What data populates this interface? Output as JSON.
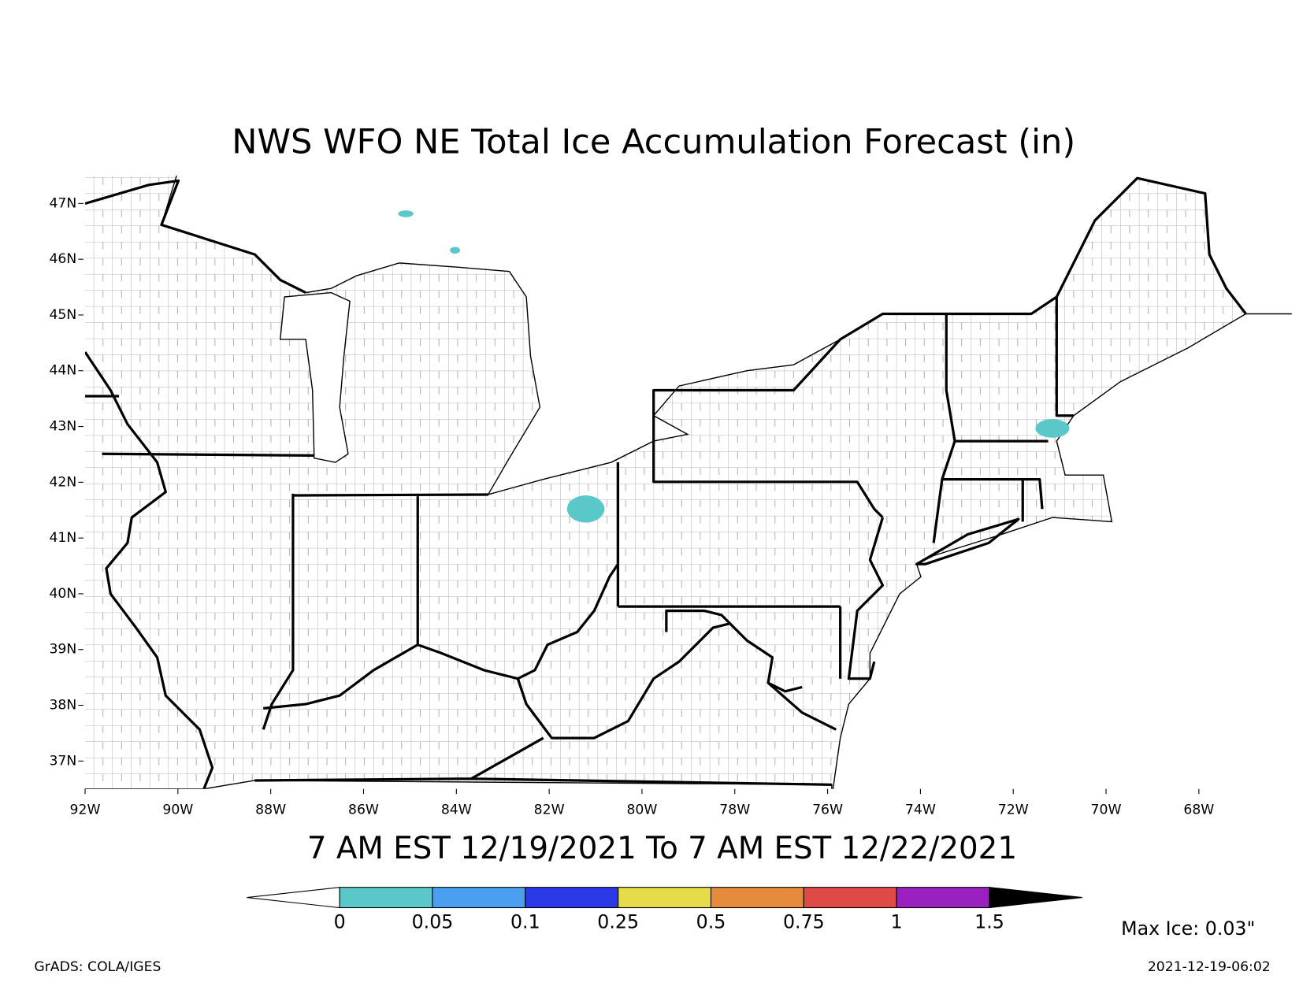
{
  "chart_data": {
    "type": "map",
    "title": "NWS WFO NE Total Ice Accumulation Forecast (in)",
    "subtitle": "7 AM EST 12/19/2021 To 7 AM EST 12/22/2021",
    "xlim": [
      -92,
      -66
    ],
    "ylim": [
      36.5,
      47.5
    ],
    "xticks": [
      {
        "value": -92,
        "label": "92W"
      },
      {
        "value": -90,
        "label": "90W"
      },
      {
        "value": -88,
        "label": "88W"
      },
      {
        "value": -86,
        "label": "86W"
      },
      {
        "value": -84,
        "label": "84W"
      },
      {
        "value": -82,
        "label": "82W"
      },
      {
        "value": -80,
        "label": "80W"
      },
      {
        "value": -78,
        "label": "78W"
      },
      {
        "value": -76,
        "label": "76W"
      },
      {
        "value": -74,
        "label": "74W"
      },
      {
        "value": -72,
        "label": "72W"
      },
      {
        "value": -70,
        "label": "70W"
      },
      {
        "value": -68,
        "label": "68W"
      }
    ],
    "yticks": [
      {
        "value": 37,
        "label": "37N"
      },
      {
        "value": 38,
        "label": "38N"
      },
      {
        "value": 39,
        "label": "39N"
      },
      {
        "value": 40,
        "label": "40N"
      },
      {
        "value": 41,
        "label": "41N"
      },
      {
        "value": 42,
        "label": "42N"
      },
      {
        "value": 43,
        "label": "43N"
      },
      {
        "value": 44,
        "label": "44N"
      },
      {
        "value": 45,
        "label": "45N"
      },
      {
        "value": 46,
        "label": "46N"
      },
      {
        "value": 47,
        "label": "47N"
      }
    ],
    "colorbar": {
      "levels": [
        0,
        0.05,
        0.1,
        0.25,
        0.5,
        0.75,
        1,
        1.5
      ],
      "colors": [
        "#ffffff",
        "#5ac8c8",
        "#4a9ff0",
        "#2a3ae8",
        "#e6dc4a",
        "#e68a3c",
        "#e04a46",
        "#9a20c0",
        "#000000"
      ]
    },
    "max_label": "Max Ice: 0.03\"",
    "credit": "GrADS: COLA/IGES",
    "timestamp": "2021-12-19-06:02"
  }
}
